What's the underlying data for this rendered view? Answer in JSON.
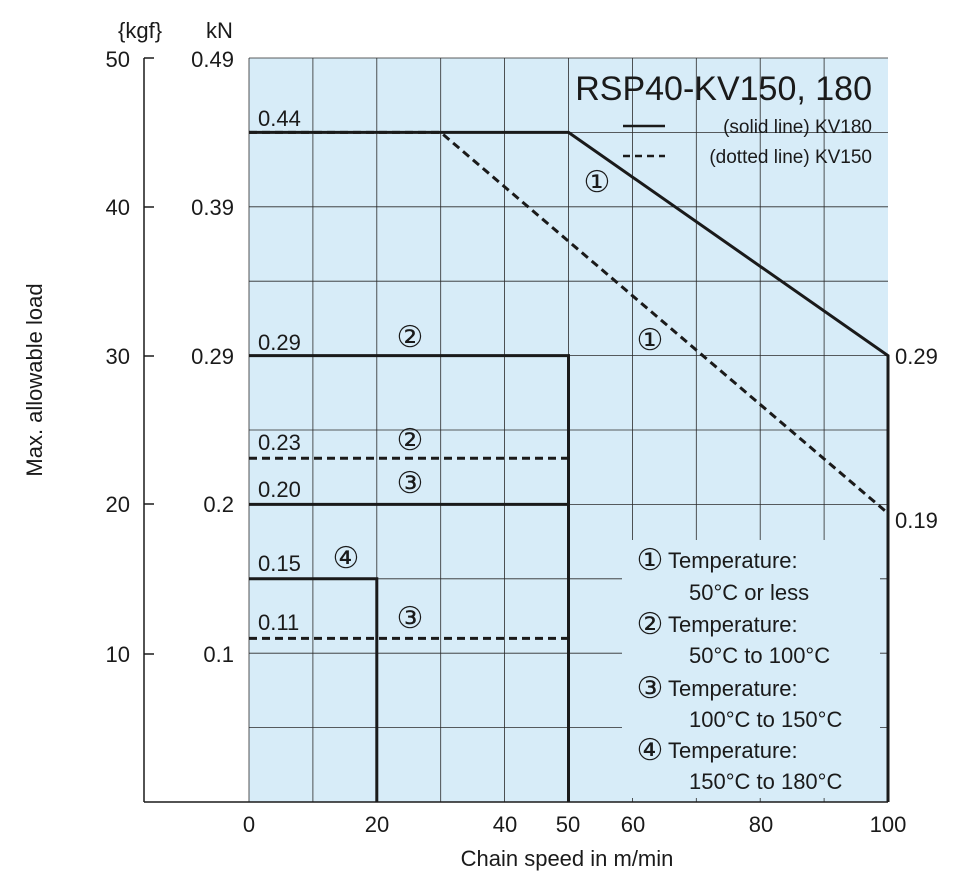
{
  "chart_data": {
    "type": "line",
    "title": "RSP40-KV150, 180",
    "xlabel": "Chain speed in m/min",
    "ylabel": "Max. allowable load",
    "y_unit_left": "{kgf}",
    "y_unit_right": "kN",
    "xlim": [
      0,
      100
    ],
    "ylim": [
      0,
      50
    ],
    "x_ticks": [
      "0",
      "20",
      "40",
      "50",
      "60",
      "80",
      "100"
    ],
    "y_ticks_kgf": [
      "10",
      "20",
      "30",
      "40",
      "50"
    ],
    "y_ticks_kn": [
      "0.1",
      "0.2",
      "0.29",
      "0.39",
      "0.49"
    ],
    "grid": true,
    "background_color": "#d7ecf8",
    "line_color": "#1a1a1a",
    "legend": [
      {
        "style": "solid",
        "label": "(solid line) KV180"
      },
      {
        "style": "dotted",
        "label": "(dotted line) KV150"
      }
    ],
    "series": [
      {
        "marker": "①",
        "style": "solid",
        "x": [
          0,
          50,
          100,
          100
        ],
        "y": [
          45,
          45,
          30,
          0
        ]
      },
      {
        "marker": "①",
        "style": "dotted",
        "x": [
          0,
          30,
          100,
          100
        ],
        "y": [
          45,
          45,
          19.4,
          0
        ]
      },
      {
        "marker": "②",
        "style": "solid",
        "x": [
          0,
          50,
          50
        ],
        "y": [
          30,
          30,
          0
        ]
      },
      {
        "marker": "②",
        "style": "dotted",
        "x": [
          0,
          50
        ],
        "y": [
          23.1,
          23.1
        ]
      },
      {
        "marker": "③",
        "style": "solid",
        "x": [
          0,
          50,
          50
        ],
        "y": [
          20,
          20,
          0
        ]
      },
      {
        "marker": "③",
        "style": "dotted",
        "x": [
          0,
          50
        ],
        "y": [
          11,
          11
        ]
      },
      {
        "marker": "④",
        "style": "solid",
        "x": [
          0,
          20,
          20
        ],
        "y": [
          15,
          15,
          0
        ]
      }
    ],
    "value_labels": [
      "0.44",
      "0.29",
      "0.23",
      "0.20",
      "0.15",
      "0.11",
      "0.29",
      "0.19"
    ],
    "notes": [
      {
        "marker": "①",
        "line1": "Temperature:",
        "line2": "50°C or less"
      },
      {
        "marker": "②",
        "line1": "Temperature:",
        "line2": "50°C to 100°C"
      },
      {
        "marker": "③",
        "line1": "Temperature:",
        "line2": "100°C to 150°C"
      },
      {
        "marker": "④",
        "line1": "Temperature:",
        "line2": "150°C to 180°C"
      }
    ]
  }
}
